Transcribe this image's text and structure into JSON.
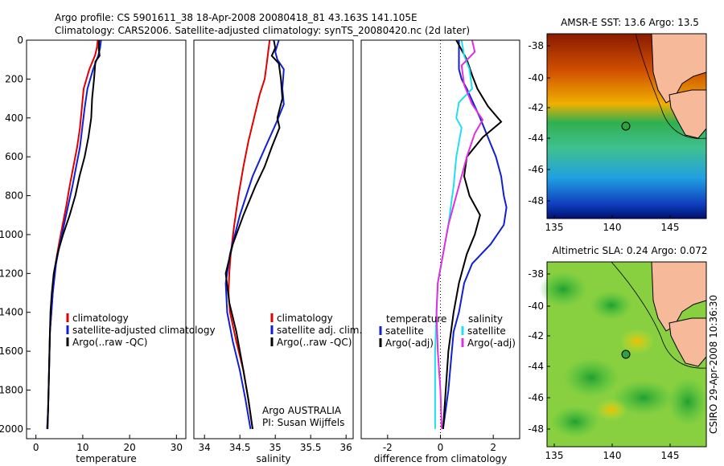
{
  "header": {
    "title_line1": "Argo profile: CS 5901611_38 18-Apr-2008 20080418_81 43.163S 141.105E",
    "title_line2": "Climatology: CARS2006. Satellite-adjusted climatology: synTS_20080420.nc (2d later)"
  },
  "colors": {
    "climatology": "#e00000",
    "satellite": "#1020d0",
    "argo": "#000000",
    "sal_sat": "#20e0f0",
    "sal_argo": "#e030e0"
  },
  "chart_data": [
    {
      "type": "line",
      "xlabel": "temperature",
      "ylabel": "",
      "xlim": [
        -2,
        32
      ],
      "ylim": [
        2050,
        0
      ],
      "xticks": [
        0,
        10,
        20,
        30
      ],
      "yticks": [
        0,
        200,
        400,
        600,
        800,
        1000,
        1200,
        1400,
        1600,
        1800,
        2000
      ],
      "legend": [
        "climatology",
        "satellite-adjusted climatology",
        "Argo(..raw -QC)"
      ],
      "legend_placement": "lower-right",
      "series": [
        {
          "key": "climatology",
          "x": [
            13.2,
            13.0,
            12.6,
            11.4,
            10.2,
            9.8,
            9.4,
            8.8,
            8.0,
            7.2,
            6.5,
            5.7,
            4.9,
            4.2,
            3.6,
            3.3,
            3.0,
            2.8,
            2.6,
            2.4
          ],
          "y": [
            0,
            40,
            80,
            150,
            250,
            350,
            450,
            550,
            650,
            750,
            850,
            950,
            1050,
            1150,
            1300,
            1400,
            1500,
            1700,
            1900,
            2000
          ]
        },
        {
          "key": "satellite",
          "x": [
            13.9,
            13.7,
            13.3,
            12.2,
            11.0,
            10.4,
            9.9,
            9.4,
            8.6,
            7.8,
            6.9,
            6.0,
            5.1,
            4.3,
            3.6,
            3.3,
            3.0,
            2.8,
            2.6,
            2.4
          ],
          "y": [
            0,
            40,
            80,
            150,
            250,
            350,
            450,
            550,
            650,
            750,
            850,
            950,
            1050,
            1150,
            1300,
            1400,
            1500,
            1700,
            1900,
            2000
          ]
        },
        {
          "key": "argo",
          "x": [
            13.5,
            13.4,
            13.6,
            12.7,
            12.4,
            12.0,
            11.8,
            11.2,
            10.4,
            9.3,
            8.4,
            7.2,
            5.8,
            4.6,
            3.8,
            3.4,
            3.1,
            2.9,
            2.7,
            2.5
          ],
          "y": [
            0,
            40,
            80,
            110,
            200,
            300,
            400,
            500,
            600,
            700,
            800,
            900,
            1000,
            1100,
            1200,
            1300,
            1400,
            1600,
            1800,
            2000
          ]
        }
      ]
    },
    {
      "type": "line",
      "xlabel": "salinity",
      "xlim": [
        33.85,
        36.1
      ],
      "ylim": [
        2050,
        0
      ],
      "xticks": [
        34,
        34.5,
        35,
        35.5,
        36
      ],
      "legend": [
        "climatology",
        "satellite adj. clim.",
        "Argo(..raw -QC)"
      ],
      "legend_placement": "lower-right",
      "annotation": [
        "Argo AUSTRALIA",
        "PI: Susan Wijffels"
      ],
      "series": [
        {
          "key": "climatology",
          "x": [
            34.92,
            34.9,
            34.88,
            34.85,
            34.78,
            34.7,
            34.62,
            34.55,
            34.48,
            34.42,
            34.37,
            34.35,
            34.34,
            34.36,
            34.45,
            34.55,
            34.62,
            34.68
          ],
          "y": [
            0,
            60,
            120,
            200,
            280,
            400,
            520,
            650,
            800,
            950,
            1100,
            1200,
            1300,
            1400,
            1550,
            1700,
            1850,
            2000
          ]
        },
        {
          "key": "satellite",
          "x": [
            35.05,
            35.0,
            35.03,
            35.12,
            35.1,
            35.12,
            35.02,
            34.86,
            34.68,
            34.5,
            34.36,
            34.3,
            34.32,
            34.4,
            34.5,
            34.58,
            34.65
          ],
          "y": [
            0,
            60,
            100,
            150,
            250,
            330,
            420,
            550,
            700,
            900,
            1100,
            1250,
            1400,
            1550,
            1700,
            1850,
            2000
          ]
        },
        {
          "key": "argo",
          "x": [
            34.98,
            35.0,
            34.95,
            35.05,
            35.08,
            35.1,
            35.03,
            35.06,
            34.95,
            34.85,
            34.72,
            34.55,
            34.4,
            34.3,
            34.35,
            34.45,
            34.55,
            34.62,
            34.68
          ],
          "y": [
            0,
            40,
            80,
            120,
            200,
            300,
            400,
            450,
            550,
            650,
            750,
            900,
            1050,
            1200,
            1350,
            1500,
            1700,
            1850,
            2000
          ]
        }
      ]
    },
    {
      "type": "line",
      "xlabel": "difference from climatology",
      "xlim": [
        -3,
        3
      ],
      "ylim": [
        2050,
        0
      ],
      "xticks": [
        -2,
        0,
        2
      ],
      "legend": [
        "temperature",
        "satellite",
        "Argo(-adj)",
        "salinity",
        "satellite",
        "Argo(-adj)"
      ],
      "legend_placement": "lower-center",
      "series": [
        {
          "key": "temp_sat",
          "x": [
            0.7,
            0.7,
            0.7,
            0.8,
            1.0,
            1.5,
            1.8,
            2.1,
            2.3,
            2.4,
            2.5,
            2.4,
            1.9,
            1.2,
            0.9,
            0.7,
            0.5,
            0.4,
            0.3,
            0.2,
            0.1
          ],
          "y": [
            0,
            100,
            150,
            200,
            250,
            400,
            500,
            600,
            700,
            800,
            860,
            950,
            1050,
            1150,
            1250,
            1400,
            1500,
            1650,
            1800,
            1900,
            2000
          ]
        },
        {
          "key": "temp_argo",
          "x": [
            0.6,
            0.8,
            1.0,
            1.2,
            1.4,
            1.8,
            2.3,
            1.6,
            1.0,
            0.9,
            1.1,
            1.5,
            1.3,
            1.0,
            0.7,
            0.5,
            0.3,
            0.2,
            0.1
          ],
          "y": [
            0,
            50,
            100,
            180,
            250,
            340,
            420,
            500,
            600,
            700,
            800,
            900,
            1000,
            1100,
            1250,
            1400,
            1600,
            1800,
            2000
          ]
        },
        {
          "key": "sal_sat",
          "x": [
            0.8,
            0.9,
            1.1,
            1.2,
            0.7,
            0.6,
            0.8,
            0.6,
            0.5,
            0.4,
            0.3,
            0.1,
            -0.1,
            -0.15,
            -0.2,
            -0.2,
            -0.2
          ],
          "y": [
            0,
            80,
            150,
            250,
            320,
            400,
            450,
            600,
            750,
            850,
            950,
            1100,
            1250,
            1400,
            1600,
            1800,
            2000
          ]
        },
        {
          "key": "sal_argo",
          "x": [
            1.2,
            1.3,
            0.8,
            0.9,
            1.2,
            1.6,
            1.3,
            1.0,
            0.7,
            0.5,
            0.3,
            0.1,
            -0.1,
            -0.15,
            -0.1,
            0.0,
            0.05
          ],
          "y": [
            0,
            60,
            130,
            230,
            330,
            410,
            480,
            600,
            750,
            850,
            950,
            1100,
            1250,
            1400,
            1600,
            1800,
            2000
          ]
        }
      ]
    }
  ],
  "maps": {
    "sst": {
      "title": "AMSR-E SST: 13.6 Argo: 13.5",
      "xticks": [
        "135",
        "140",
        "145"
      ],
      "yticks": [
        "-38",
        "-40",
        "-42",
        "-44",
        "-46",
        "-48"
      ]
    },
    "sla": {
      "title": "Altimetric SLA: 0.24 Argo: 0.072",
      "xticks": [
        "135",
        "140",
        "145"
      ],
      "yticks": [
        "-38",
        "-40",
        "-42",
        "-44",
        "-46",
        "-48"
      ]
    },
    "credit": "CSIRO 29-Apr-2008 10:36:30"
  }
}
